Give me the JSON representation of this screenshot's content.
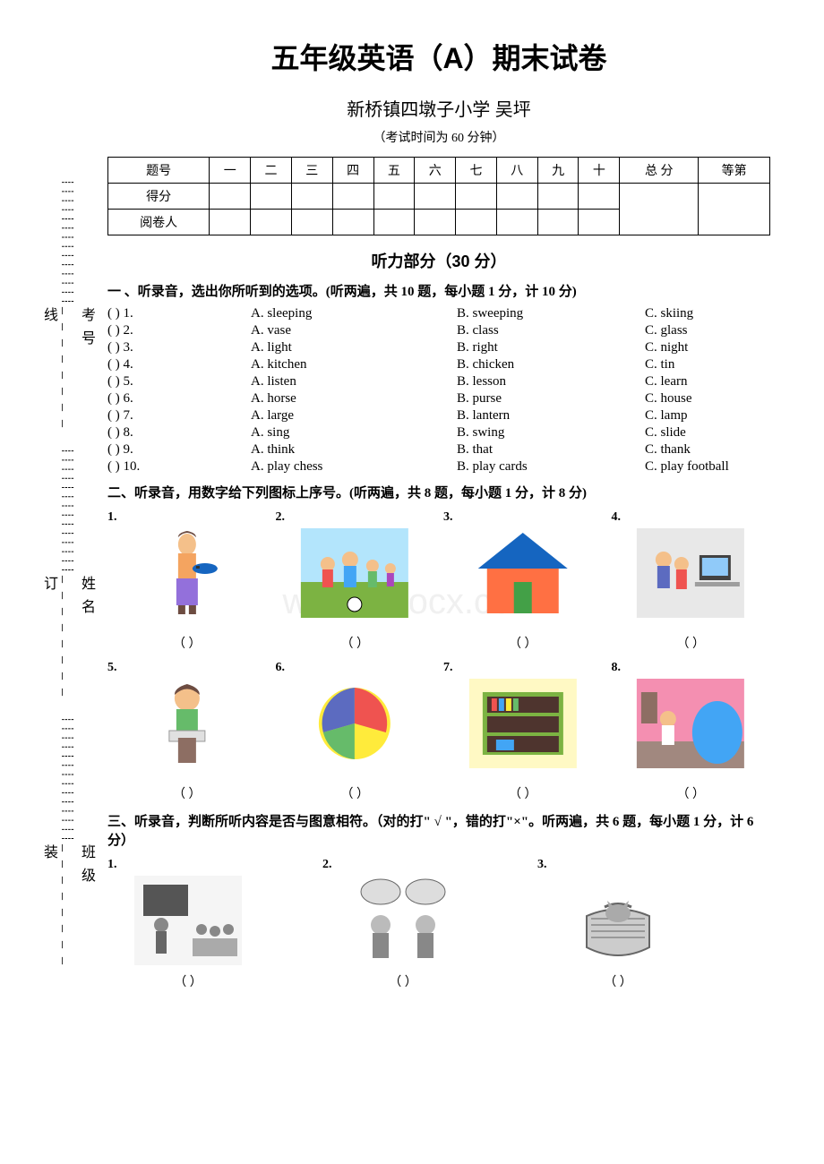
{
  "title": "五年级英语（A）期末试卷",
  "subtitle": "新桥镇四墩子小学 吴坪",
  "duration": "（考试时间为 60 分钟）",
  "binding": {
    "line1": "班级________ 装",
    "dots1": "┊┊┊┊┊┊┊┊┊┊┊┊┊┊",
    "line2": "姓名________ 订",
    "dots2": "┊┊┊┊┊┊┊┊┊┊┊┊┊┊",
    "line3": "考号________ 线",
    "dots3": "┊┊┊┊┊┊┊┊┊┊┊┊┊┊"
  },
  "score_table": {
    "header_labels": [
      "题号",
      "一",
      "二",
      "三",
      "四",
      "五",
      "六",
      "七",
      "八",
      "九",
      "十",
      "总 分",
      "等第"
    ],
    "row_labels": [
      "得分",
      "阅卷人"
    ]
  },
  "section_header": "听力部分（30 分）",
  "q1": {
    "header": "一 、听录音，选出你所听到的选项。(听两遍，共 10 题，每小题 1 分，计 10 分)",
    "items": [
      {
        "n": "(        ) 1.",
        "a": "A. sleeping",
        "b": "B. sweeping",
        "c": "C. skiing"
      },
      {
        "n": "(        ) 2.",
        "a": "A. vase",
        "b": "B. class",
        "c": "C. glass"
      },
      {
        "n": "(        ) 3.",
        "a": "A. light",
        "b": "B. right",
        "c": "C. night"
      },
      {
        "n": "(        ) 4.",
        "a": "A. kitchen",
        "b": "B. chicken",
        "c": "C. tin"
      },
      {
        "n": "(        ) 5.",
        "a": "A. listen",
        "b": "B. lesson",
        "c": "C. learn"
      },
      {
        "n": "(        ) 6.",
        "a": "A. horse",
        "b": "B. purse",
        "c": "C. house"
      },
      {
        "n": "(        ) 7.",
        "a": "A. large",
        "b": "B. lantern",
        "c": "C. lamp"
      },
      {
        "n": "(        ) 8.",
        "a": "A. sing",
        "b": "B. swing",
        "c": "C. slide"
      },
      {
        "n": "(        ) 9.",
        "a": "A. think",
        "b": "B. that",
        "c": "C. thank"
      },
      {
        "n": "(        ) 10.",
        "a": "A. play chess",
        "b": "B. play cards",
        "c": "C. play football"
      }
    ]
  },
  "q2": {
    "header": "二、听录音，用数字给下列图标上序号。(听两遍，共 8 题，每小题 1 分，计 8 分)",
    "items": [
      "1.",
      "2.",
      "3.",
      "4.",
      "5.",
      "6.",
      "7.",
      "8."
    ],
    "bracket": "（        ）",
    "images": [
      {
        "type": "person-cooking",
        "colors": {
          "shirt": "#f4a460",
          "pants": "#9370db"
        }
      },
      {
        "type": "football-family",
        "colors": {
          "grass": "#7cb342",
          "sky": "#b3e5fc"
        }
      },
      {
        "type": "house",
        "colors": {
          "roof": "#1565c0",
          "wall": "#ff7043",
          "door": "#43a047"
        }
      },
      {
        "type": "computer-kids",
        "colors": {
          "bg": "#e0e0e0"
        }
      },
      {
        "type": "boy-reading",
        "colors": {
          "shirt": "#66bb6a"
        }
      },
      {
        "type": "ball",
        "colors": {
          "c1": "#ffeb3b",
          "c2": "#ef5350",
          "c3": "#5c6bc0"
        }
      },
      {
        "type": "bookshelf",
        "colors": {
          "shelf": "#7cb342",
          "wall": "#fff9c4"
        }
      },
      {
        "type": "girl-room",
        "colors": {
          "wall": "#f48fb1",
          "item": "#42a5f5"
        }
      }
    ]
  },
  "q3": {
    "header": "三、听录音，判断所听内容是否与图意相符。（对的打\" √ \"，错的打\"×\"。听两遍，共 6 题，每小题 1 分，计 6 分）",
    "items": [
      "1.",
      "2.",
      "3."
    ],
    "bracket": "（        ）",
    "images": [
      {
        "type": "classroom-bw"
      },
      {
        "type": "kids-thinking-bw"
      },
      {
        "type": "cat-basket-bw"
      }
    ]
  },
  "watermark": "www.bdocx.com"
}
